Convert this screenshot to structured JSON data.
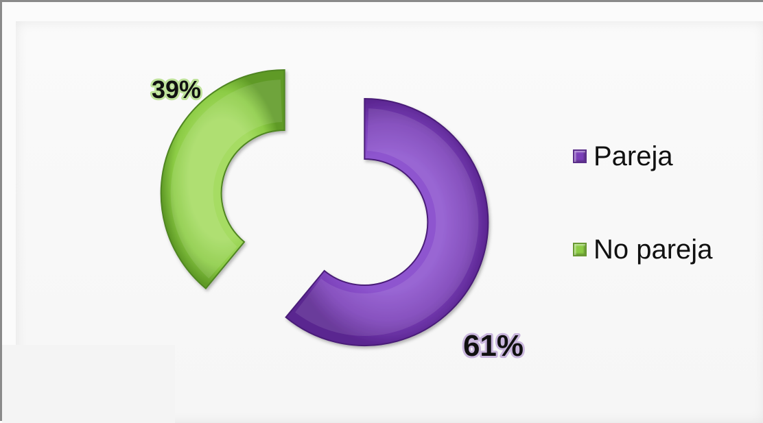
{
  "chart_data": {
    "type": "pie",
    "style": "exploded doughnut",
    "categories": [
      "Pareja",
      "No pareja"
    ],
    "values": [
      61,
      39
    ],
    "data_labels": [
      "61%",
      "39%"
    ],
    "colors": [
      "#7a3fb8",
      "#8ccc45"
    ],
    "legend_position": "right"
  }
}
